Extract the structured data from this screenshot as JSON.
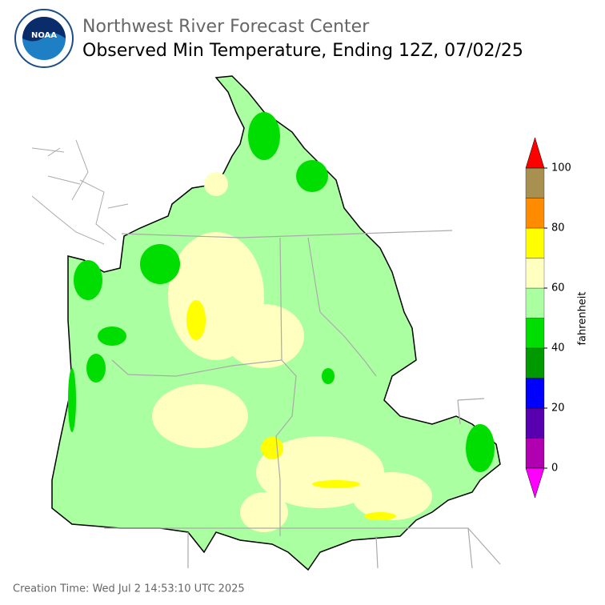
{
  "header": {
    "agency": "Northwest River Forecast Center",
    "title": "Observed Min Temperature, Ending 12Z, 07/02/25"
  },
  "colorbar": {
    "label": "fahrenheit",
    "bins": [
      0,
      10,
      20,
      30,
      40,
      50,
      60,
      70,
      80,
      90,
      100
    ],
    "colors": [
      "#b000b0",
      "#5800b0",
      "#0000ff",
      "#009900",
      "#00dd00",
      "#aaffa0",
      "#ffffc0",
      "#ffff00",
      "#ff8c00",
      "#a89050"
    ],
    "under_color": "#ff00ff",
    "over_color": "#ff0000",
    "ticks": [
      0,
      20,
      40,
      60,
      80,
      100
    ]
  },
  "footer": {
    "creation_time": "Creation Time: Wed Jul 2 14:53:10 UTC 2025"
  }
}
